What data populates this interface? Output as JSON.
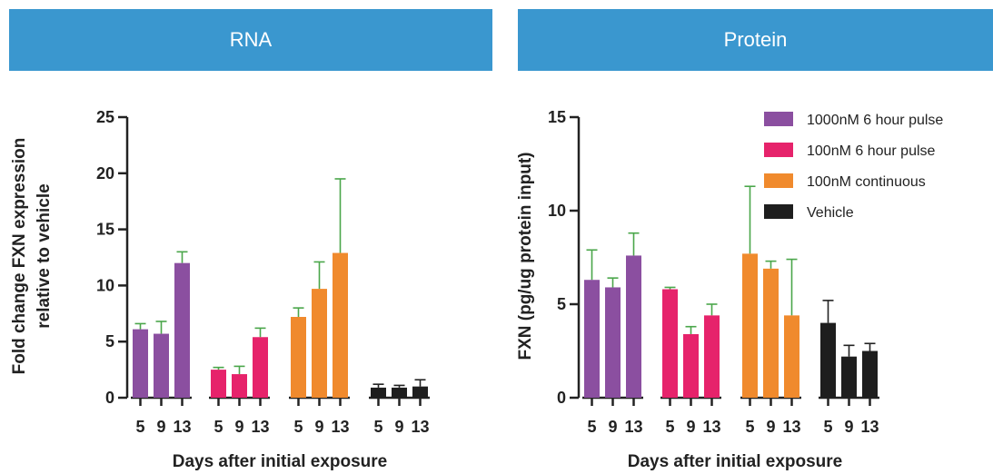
{
  "panels": {
    "rna_title": "RNA",
    "protein_title": "Protein"
  },
  "colors": {
    "1000nM 6 hour pulse": "#8b4fa0",
    "100nM 6 hour pulse": "#e6236b",
    "100nM continuous": "#f08a2d",
    "Vehicle": "#1e1e1e",
    "error_bar": "#4aa64a",
    "banner": "#3a97cf"
  },
  "chart_data": [
    {
      "type": "bar",
      "title": "RNA",
      "xlabel": "Days after initial exposure",
      "ylabel_lines": [
        "Fold change FXN expression",
        "relative to vehicle"
      ],
      "ylim": [
        0,
        25
      ],
      "yticks": [
        0,
        5,
        10,
        15,
        20,
        25
      ],
      "categories": [
        "5",
        "9",
        "13"
      ],
      "series": [
        {
          "name": "1000nM 6 hour pulse",
          "values": [
            6.1,
            5.7,
            12.0
          ],
          "errors": [
            0.5,
            1.1,
            1.0
          ]
        },
        {
          "name": "100nM 6 hour pulse",
          "values": [
            2.5,
            2.1,
            5.4
          ],
          "errors": [
            0.2,
            0.7,
            0.8
          ]
        },
        {
          "name": "100nM continuous",
          "values": [
            7.2,
            9.7,
            12.9
          ],
          "errors": [
            0.8,
            2.4,
            6.6
          ]
        },
        {
          "name": "Vehicle",
          "values": [
            0.9,
            0.9,
            1.0
          ],
          "errors": [
            0.3,
            0.2,
            0.6
          ]
        }
      ]
    },
    {
      "type": "bar",
      "title": "Protein",
      "xlabel": "Days after initial exposure",
      "ylabel_lines": [
        "FXN (pg/ug protein input)"
      ],
      "ylim": [
        0,
        15
      ],
      "yticks": [
        0,
        5,
        10,
        15
      ],
      "categories": [
        "5",
        "9",
        "13"
      ],
      "legend": "top-right",
      "series": [
        {
          "name": "1000nM 6 hour pulse",
          "values": [
            6.3,
            5.9,
            7.6
          ],
          "errors": [
            1.6,
            0.5,
            1.2
          ]
        },
        {
          "name": "100nM 6 hour pulse",
          "values": [
            5.8,
            3.4,
            4.4
          ],
          "errors": [
            0.1,
            0.4,
            0.6
          ]
        },
        {
          "name": "100nM continuous",
          "values": [
            7.7,
            6.9,
            4.4
          ],
          "errors": [
            3.6,
            0.4,
            3.0
          ]
        },
        {
          "name": "Vehicle",
          "values": [
            4.0,
            2.2,
            2.5
          ],
          "errors": [
            1.2,
            0.6,
            0.4
          ]
        }
      ]
    }
  ]
}
